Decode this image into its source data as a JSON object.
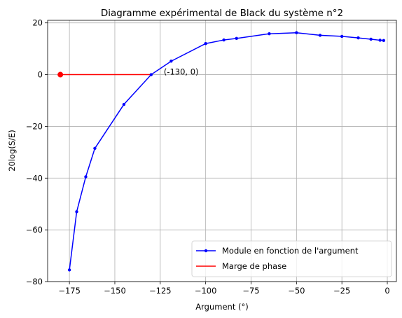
{
  "chart_data": {
    "type": "line",
    "title": "Diagramme expérimental de Black du système n°2",
    "xlabel": "Argument (°)",
    "ylabel": "20log(S/E)",
    "xlim": [
      -187,
      5
    ],
    "ylim": [
      -80,
      21
    ],
    "x_ticks": [
      -175,
      -150,
      -125,
      -100,
      -75,
      -50,
      -25,
      0
    ],
    "x_tick_labels": [
      "−175",
      "−150",
      "−125",
      "−100",
      "−75",
      "−50",
      "−25",
      "0"
    ],
    "y_ticks": [
      -80,
      -60,
      -40,
      -20,
      0,
      20
    ],
    "y_tick_labels": [
      "−80",
      "−60",
      "−40",
      "−20",
      "0",
      "20"
    ],
    "grid": true,
    "legend_position": "lower-right",
    "series": [
      {
        "name": "Module en fonction de l'argument",
        "color": "#0000ff",
        "marker": "dot",
        "x": [
          -175,
          -171,
          -166,
          -161,
          -145,
          -130,
          -119,
          -100,
          -90,
          -83,
          -65,
          -50,
          -37,
          -25,
          -16,
          -9,
          -4,
          -2
        ],
        "y": [
          -75.5,
          -53,
          -39.5,
          -28.5,
          -11.5,
          0,
          5.2,
          12,
          13.4,
          14,
          15.8,
          16.2,
          15.2,
          14.8,
          14.2,
          13.7,
          13.3,
          13.2
        ]
      },
      {
        "name": "Marge de phase",
        "color": "#ff0000",
        "marker": "none",
        "x": [
          -180,
          -130
        ],
        "y": [
          0,
          0
        ]
      }
    ],
    "points": [
      {
        "x": -180,
        "y": 0,
        "color": "#ff0000"
      }
    ],
    "annotations": [
      {
        "text": "(-130, 0)",
        "x": -130,
        "y": 0
      }
    ]
  }
}
